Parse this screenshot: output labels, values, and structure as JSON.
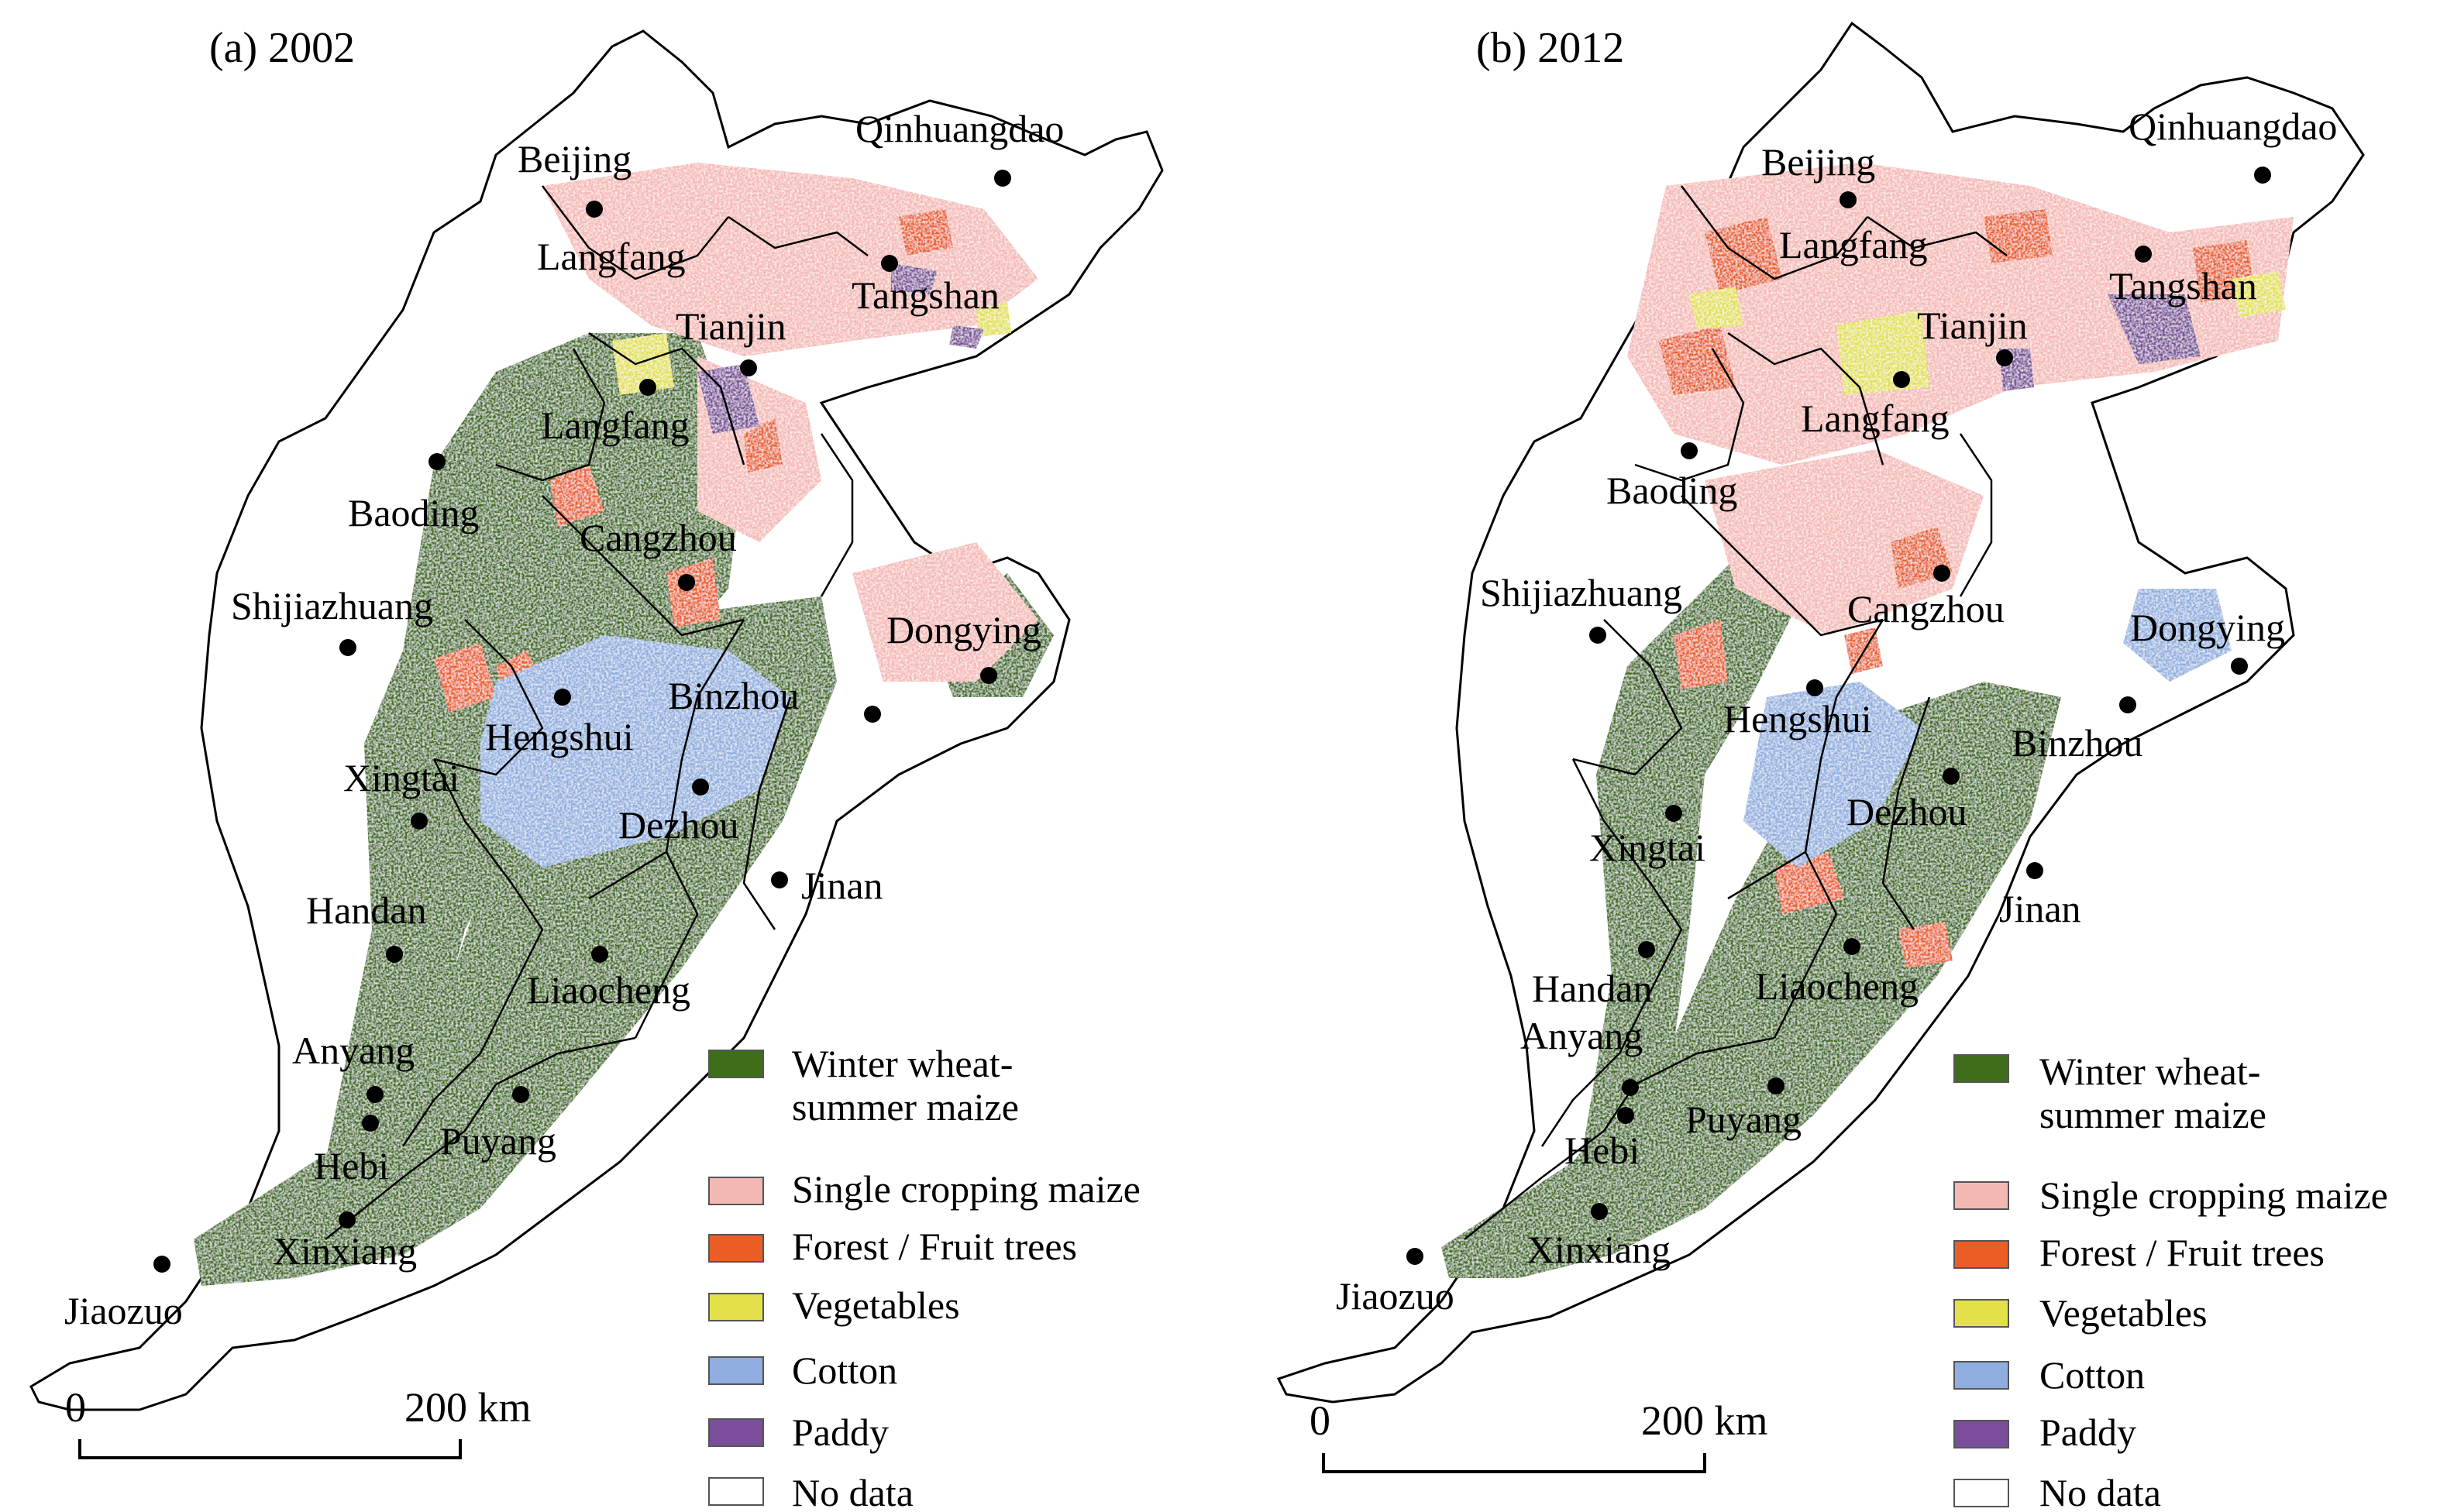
{
  "maps": [
    {
      "title": "(a) 2002",
      "cities": [
        {
          "name": "Beijing"
        },
        {
          "name": "Qinhuangdao"
        },
        {
          "name": "Langfang"
        },
        {
          "name": "Tangshan"
        },
        {
          "name": "Tianjin"
        },
        {
          "name": "Langfang"
        },
        {
          "name": "Baoding"
        },
        {
          "name": "Cangzhou"
        },
        {
          "name": "Shijiazhuang"
        },
        {
          "name": "Dongying"
        },
        {
          "name": "Binzhou"
        },
        {
          "name": "Hengshui"
        },
        {
          "name": "Xingtai"
        },
        {
          "name": "Dezhou"
        },
        {
          "name": "Jinan"
        },
        {
          "name": "Handan"
        },
        {
          "name": "Liaocheng"
        },
        {
          "name": "Anyang"
        },
        {
          "name": "Puyang"
        },
        {
          "name": "Hebi"
        },
        {
          "name": "Xinxiang"
        },
        {
          "name": "Jiaozuo"
        }
      ],
      "scale_bar": {
        "start_label": "0",
        "end_label": "200 km"
      }
    },
    {
      "title": "(b) 2012",
      "cities": [
        {
          "name": "Beijing"
        },
        {
          "name": "Qinhuangdao"
        },
        {
          "name": "Langfang"
        },
        {
          "name": "Tangshan"
        },
        {
          "name": "Tianjin"
        },
        {
          "name": "Langfang"
        },
        {
          "name": "Baoding"
        },
        {
          "name": "Shijiazhuang"
        },
        {
          "name": "Cangzhou"
        },
        {
          "name": "Dongying"
        },
        {
          "name": "Hengshui"
        },
        {
          "name": "Binzhou"
        },
        {
          "name": "Dezhou"
        },
        {
          "name": "Xingtai"
        },
        {
          "name": "Jinan"
        },
        {
          "name": "Handan"
        },
        {
          "name": "Liaocheng"
        },
        {
          "name": "Anyang"
        },
        {
          "name": "Puyang"
        },
        {
          "name": "Hebi"
        },
        {
          "name": "Xinxiang"
        },
        {
          "name": "Jiaozuo"
        }
      ],
      "scale_bar": {
        "start_label": "0",
        "end_label": "200 km"
      }
    }
  ],
  "legend": [
    {
      "line1": "Winter wheat-",
      "line2": "summer maize",
      "color": "#3f6e1a"
    },
    {
      "line1": "Single cropping maize",
      "line2": "",
      "color": "#f4b8b4"
    },
    {
      "line1": "Forest / Fruit trees",
      "line2": "",
      "color": "#ea5e26"
    },
    {
      "line1": "Vegetables",
      "line2": "",
      "color": "#e3e04b"
    },
    {
      "line1": "Cotton",
      "line2": "",
      "color": "#8faedf"
    },
    {
      "line1": "Paddy",
      "line2": "",
      "color": "#7a4e9a"
    },
    {
      "line1": "No data",
      "line2": "",
      "color": "#ffffff"
    }
  ]
}
